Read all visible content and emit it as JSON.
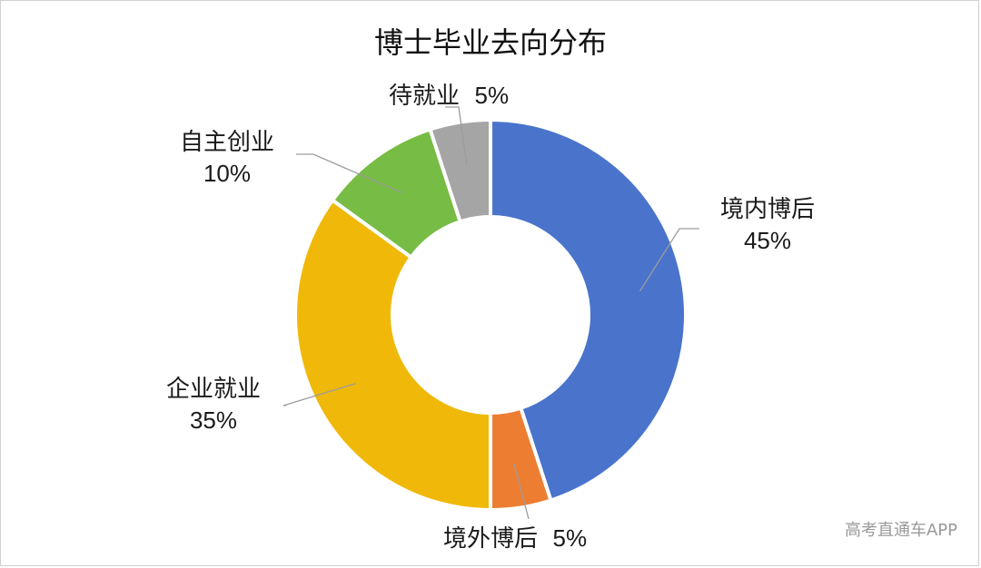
{
  "chart_data": {
    "type": "pie",
    "title": "博士毕业去向分布",
    "donut": true,
    "slices": [
      {
        "label": "境内博后",
        "value": 45,
        "value_label": "45%",
        "color": "#4a74cb"
      },
      {
        "label": "境外博后",
        "value": 5,
        "value_label": "5%",
        "color": "#ed7d31"
      },
      {
        "label": "企业就业",
        "value": 35,
        "value_label": "35%",
        "color": "#f0b90a"
      },
      {
        "label": "自主创业",
        "value": 10,
        "value_label": "10%",
        "color": "#77bc44"
      },
      {
        "label": "待就业",
        "value": 5,
        "value_label": "5%",
        "color": "#a5a5a5"
      }
    ]
  },
  "watermark": "高考直通车APP"
}
